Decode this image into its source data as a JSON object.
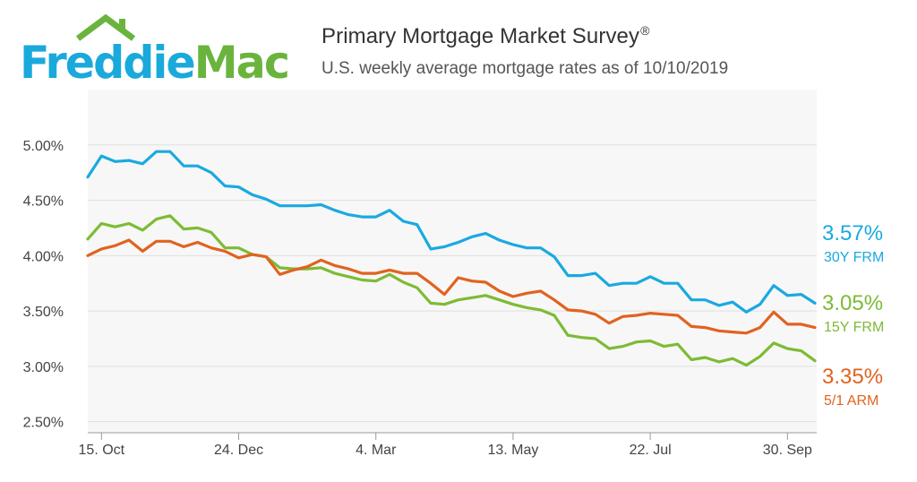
{
  "header": {
    "logo_text": "FreddieMac",
    "title": "Primary Mortgage Market Survey",
    "title_mark": "®",
    "subtitle": "U.S. weekly average mortgage rates as of 10/10/2019"
  },
  "colors": {
    "logo_blue": "#1aa9db",
    "logo_green": "#6ab43e",
    "frm30": "#1aa9e0",
    "frm15": "#7dbb35",
    "arm51": "#e0631f",
    "plot_bg": "#f7f7f7"
  },
  "chart_data": {
    "type": "line",
    "title": "Primary Mortgage Market Survey",
    "subtitle": "U.S. weekly average mortgage rates as of 10/10/2019",
    "xlabel": "",
    "ylabel": "",
    "ylim": [
      2.4,
      5.5
    ],
    "yticks": [
      2.5,
      3.0,
      3.5,
      4.0,
      4.5,
      5.0
    ],
    "ytick_labels": [
      "2.50%",
      "3.00%",
      "3.50%",
      "4.00%",
      "4.50%",
      "5.00%"
    ],
    "xticks": [
      {
        "index": 1,
        "label": "15. Oct"
      },
      {
        "index": 11,
        "label": "24. Dec"
      },
      {
        "index": 21,
        "label": "4. Mar"
      },
      {
        "index": 31,
        "label": "13. May"
      },
      {
        "index": 41,
        "label": "22. Jul"
      },
      {
        "index": 51,
        "label": "30. Sep"
      }
    ],
    "grid": true,
    "series": [
      {
        "name": "30Y FRM",
        "end_label": "3.57%",
        "values": [
          4.71,
          4.9,
          4.85,
          4.86,
          4.83,
          4.94,
          4.94,
          4.81,
          4.81,
          4.75,
          4.63,
          4.62,
          4.55,
          4.51,
          4.45,
          4.45,
          4.45,
          4.46,
          4.41,
          4.37,
          4.35,
          4.35,
          4.41,
          4.31,
          4.28,
          4.06,
          4.08,
          4.12,
          4.17,
          4.2,
          4.14,
          4.1,
          4.07,
          4.07,
          3.99,
          3.82,
          3.82,
          3.84,
          3.73,
          3.75,
          3.75,
          3.81,
          3.75,
          3.75,
          3.6,
          3.6,
          3.55,
          3.58,
          3.49,
          3.56,
          3.73,
          3.64,
          3.65,
          3.57
        ]
      },
      {
        "name": "15Y FRM",
        "end_label": "3.05%",
        "values": [
          4.15,
          4.29,
          4.26,
          4.29,
          4.23,
          4.33,
          4.36,
          4.24,
          4.25,
          4.21,
          4.07,
          4.07,
          4.01,
          3.99,
          3.89,
          3.88,
          3.88,
          3.89,
          3.84,
          3.81,
          3.78,
          3.77,
          3.83,
          3.76,
          3.71,
          3.57,
          3.56,
          3.6,
          3.62,
          3.64,
          3.6,
          3.56,
          3.53,
          3.51,
          3.46,
          3.28,
          3.26,
          3.25,
          3.16,
          3.18,
          3.22,
          3.23,
          3.18,
          3.2,
          3.06,
          3.08,
          3.04,
          3.07,
          3.01,
          3.09,
          3.21,
          3.16,
          3.14,
          3.05
        ]
      },
      {
        "name": "5/1 ARM",
        "end_label": "3.35%",
        "values": [
          4.0,
          4.06,
          4.09,
          4.14,
          4.04,
          4.13,
          4.13,
          4.08,
          4.12,
          4.07,
          4.04,
          3.98,
          4.01,
          3.99,
          3.83,
          3.87,
          3.9,
          3.96,
          3.91,
          3.88,
          3.84,
          3.84,
          3.87,
          3.84,
          3.84,
          3.75,
          3.65,
          3.8,
          3.77,
          3.76,
          3.68,
          3.63,
          3.66,
          3.68,
          3.6,
          3.51,
          3.5,
          3.47,
          3.39,
          3.45,
          3.46,
          3.48,
          3.47,
          3.46,
          3.36,
          3.35,
          3.32,
          3.31,
          3.3,
          3.35,
          3.49,
          3.38,
          3.38,
          3.35
        ]
      }
    ]
  }
}
